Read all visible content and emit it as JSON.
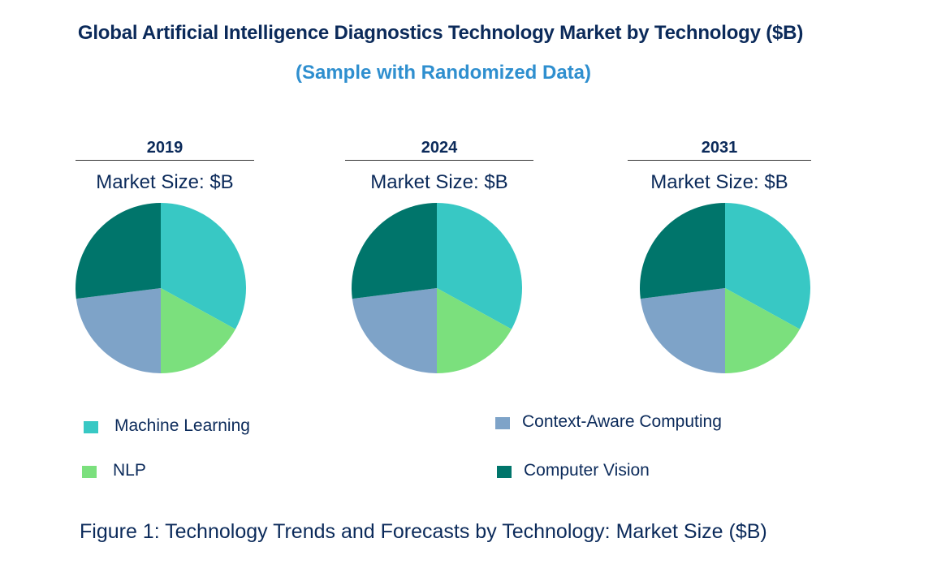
{
  "title": "Global Artificial Intelligence Diagnostics Technology Market by Technology ($B)",
  "subtitle": "(Sample with Randomized Data)",
  "caption": "Figure 1: Technology Trends and Forecasts by Technology: Market Size ($B)",
  "chart_data": {
    "type": "pie",
    "categories": [
      "Machine Learning",
      "NLP",
      "Context-Aware Computing",
      "Computer Vision"
    ],
    "colors": [
      "#38c8c4",
      "#7be07d",
      "#7ea3c8",
      "#00756b"
    ],
    "legend_position": "bottom",
    "panels": [
      {
        "year": "2019",
        "market_size_label": "Market Size: $B",
        "values": [
          33,
          17,
          23,
          27
        ]
      },
      {
        "year": "2024",
        "market_size_label": "Market Size: $B",
        "values": [
          33,
          17,
          23,
          27
        ]
      },
      {
        "year": "2031",
        "market_size_label": "Market Size: $B",
        "values": [
          33,
          17,
          23,
          27
        ]
      }
    ]
  },
  "legend": [
    {
      "label": "Machine Learning",
      "color": "#38c8c4"
    },
    {
      "label": "NLP",
      "color": "#7be07d"
    },
    {
      "label": "Context-Aware Computing",
      "color": "#7ea3c8"
    },
    {
      "label": "Computer Vision",
      "color": "#00756b"
    }
  ]
}
